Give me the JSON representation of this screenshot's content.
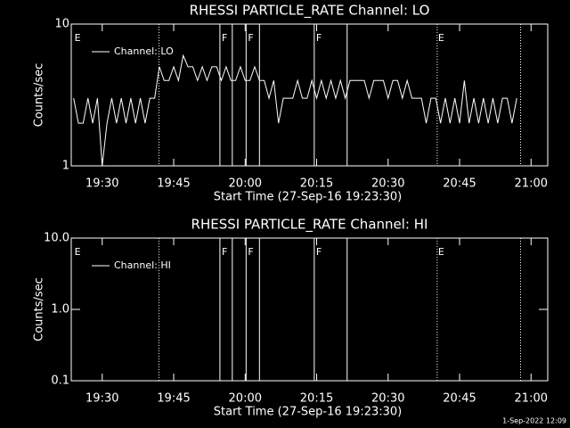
{
  "chart_data": [
    {
      "type": "line",
      "title": "RHESSI PARTICLE_RATE Channel: LO",
      "xlabel": "Start Time (27-Sep-16 19:23:30)",
      "ylabel": "Counts/sec",
      "ylog": true,
      "xlim": [
        1163.5,
        1263.5
      ],
      "ylim": [
        1,
        10
      ],
      "yticks": [
        1,
        10
      ],
      "xticks": [
        {
          "value": 1170,
          "label": "19:30"
        },
        {
          "value": 1185,
          "label": "19:45"
        },
        {
          "value": 1200,
          "label": "20:00"
        },
        {
          "value": 1215,
          "label": "20:15"
        },
        {
          "value": 1230,
          "label": "20:30"
        },
        {
          "value": 1245,
          "label": "20:45"
        },
        {
          "value": 1260,
          "label": "21:00"
        }
      ],
      "legend": "upper left",
      "markers": [
        {
          "x": 1181.9,
          "style": "dotted"
        },
        {
          "x": 1194.7,
          "style": "solid"
        },
        {
          "x": 1197.3,
          "style": "solid"
        },
        {
          "x": 1200.2,
          "style": "solid"
        },
        {
          "x": 1203.0,
          "style": "solid"
        },
        {
          "x": 1214.5,
          "style": "solid"
        },
        {
          "x": 1221.4,
          "style": "solid"
        },
        {
          "x": 1240.3,
          "style": "dotted"
        },
        {
          "x": 1257.8,
          "style": "dotted"
        }
      ],
      "flags": [
        {
          "x": 1164,
          "label": "E"
        },
        {
          "x": 1194.9,
          "label": "F"
        },
        {
          "x": 1200.4,
          "label": "F"
        },
        {
          "x": 1214.7,
          "label": "F"
        },
        {
          "x": 1240.3,
          "label": "E"
        }
      ],
      "x": [
        1164,
        1165,
        1166,
        1167,
        1168,
        1169,
        1170,
        1171,
        1172,
        1173,
        1174,
        1175,
        1176,
        1177,
        1178,
        1179,
        1180,
        1181,
        1182,
        1183,
        1184,
        1185,
        1186,
        1187,
        1188,
        1189,
        1190,
        1191,
        1192,
        1193,
        1194,
        1195,
        1196,
        1197,
        1198,
        1199,
        1200,
        1201,
        1202,
        1203,
        1204,
        1205,
        1206,
        1207,
        1208,
        1209,
        1210,
        1211,
        1212,
        1213,
        1214,
        1215,
        1216,
        1217,
        1218,
        1219,
        1220,
        1221,
        1222,
        1223,
        1224,
        1225,
        1226,
        1227,
        1228,
        1229,
        1230,
        1231,
        1232,
        1233,
        1234,
        1235,
        1236,
        1237,
        1238,
        1239,
        1240,
        1241,
        1242,
        1243,
        1244,
        1245,
        1246,
        1247,
        1248,
        1249,
        1250,
        1251,
        1252,
        1253,
        1254,
        1255,
        1256,
        1257
      ],
      "series": [
        {
          "name": "Channel: LO",
          "color": "#ffffff",
          "values": [
            3,
            2,
            2,
            3,
            2,
            3,
            1,
            2,
            3,
            2,
            3,
            2,
            3,
            2,
            3,
            2,
            3,
            3,
            5,
            4,
            4,
            5,
            4,
            6,
            5,
            5,
            4,
            5,
            4,
            5,
            5,
            4,
            5,
            4,
            4,
            5,
            4,
            4,
            5,
            4,
            4,
            3,
            4,
            2,
            3,
            3,
            3,
            4,
            3,
            3,
            4,
            3,
            4,
            3,
            4,
            3,
            4,
            3,
            4,
            4,
            4,
            4,
            3,
            4,
            4,
            4,
            3,
            4,
            4,
            3,
            4,
            3,
            3,
            3,
            2,
            3,
            3,
            2,
            3,
            2,
            3,
            2,
            4,
            2,
            3,
            2,
            3,
            2,
            3,
            2,
            3,
            3,
            2,
            3
          ]
        }
      ]
    },
    {
      "type": "line",
      "title": "RHESSI PARTICLE_RATE Channel: HI",
      "xlabel": "Start Time (27-Sep-16 19:23:30)",
      "ylabel": "Counts/sec",
      "ylog": true,
      "xlim": [
        1163.5,
        1263.5
      ],
      "ylim": [
        0.1,
        10
      ],
      "yticks": [
        {
          "value": 0.1,
          "label": "0.1"
        },
        {
          "value": 1,
          "label": "1.0"
        },
        {
          "value": 10,
          "label": "10.0"
        }
      ],
      "xticks": [
        {
          "value": 1170,
          "label": "19:30"
        },
        {
          "value": 1185,
          "label": "19:45"
        },
        {
          "value": 1200,
          "label": "20:00"
        },
        {
          "value": 1215,
          "label": "20:15"
        },
        {
          "value": 1230,
          "label": "20:30"
        },
        {
          "value": 1245,
          "label": "20:45"
        },
        {
          "value": 1260,
          "label": "21:00"
        }
      ],
      "legend": "upper left",
      "markers": [
        {
          "x": 1181.9,
          "style": "dotted"
        },
        {
          "x": 1194.7,
          "style": "solid"
        },
        {
          "x": 1197.3,
          "style": "solid"
        },
        {
          "x": 1200.2,
          "style": "solid"
        },
        {
          "x": 1203.0,
          "style": "solid"
        },
        {
          "x": 1214.5,
          "style": "solid"
        },
        {
          "x": 1221.4,
          "style": "solid"
        },
        {
          "x": 1240.3,
          "style": "dotted"
        },
        {
          "x": 1257.8,
          "style": "dotted"
        }
      ],
      "flags": [
        {
          "x": 1164,
          "label": "E"
        },
        {
          "x": 1194.9,
          "label": "F"
        },
        {
          "x": 1200.4,
          "label": "F"
        },
        {
          "x": 1214.7,
          "label": "F"
        },
        {
          "x": 1240.3,
          "label": "E"
        }
      ],
      "x": [],
      "series": [
        {
          "name": "Channel: HI",
          "color": "#ffffff",
          "values": []
        }
      ]
    }
  ],
  "footer": "1-Sep-2022 12:09"
}
